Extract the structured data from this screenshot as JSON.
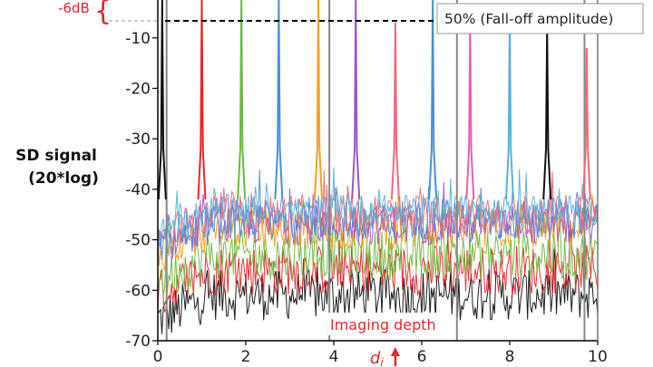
{
  "chart_data": {
    "type": "line",
    "title": "",
    "ylabel_line1": "SD signal",
    "ylabel_line2": "(20*log)",
    "xlabel": "",
    "xlim": [
      0,
      10
    ],
    "ylim": [
      -70,
      0
    ],
    "x_ticks": [
      0,
      2,
      4,
      6,
      8,
      10
    ],
    "y_ticks": [
      -10,
      -20,
      -30,
      -40,
      -50,
      -60,
      -70
    ],
    "grid": false,
    "reference_line": {
      "y": -6,
      "style": "dashed",
      "color": "#000000"
    },
    "annotations": {
      "falloff_label": "50% (Fall-off amplitude)",
      "db_label": "-6dB",
      "imaging_depth_label": "Imaging depth",
      "depth_marker_label": "d",
      "depth_marker_subscript": "i",
      "depth_marker_x": 5.4
    },
    "vertical_lines": [
      0.2,
      3.9,
      6.8,
      9.7
    ],
    "peaks": [
      {
        "x": 0.1,
        "y": 0,
        "color": "#111111"
      },
      {
        "x": 1.0,
        "y": -2,
        "color": "#e8262b"
      },
      {
        "x": 1.9,
        "y": 0,
        "color": "#6fb83f"
      },
      {
        "x": 2.75,
        "y": 0,
        "color": "#4a8fd6"
      },
      {
        "x": 3.65,
        "y": -1,
        "color": "#f4a020"
      },
      {
        "x": 4.5,
        "y": -1,
        "color": "#9b59c0"
      },
      {
        "x": 5.4,
        "y": -7,
        "color": "#f06a7a"
      },
      {
        "x": 6.25,
        "y": -2,
        "color": "#4a8fd6"
      },
      {
        "x": 7.1,
        "y": -7,
        "color": "#e860b0"
      },
      {
        "x": 8.0,
        "y": -6,
        "color": "#5ab0d8"
      },
      {
        "x": 8.85,
        "y": -8,
        "color": "#111111"
      },
      {
        "x": 9.75,
        "y": -12,
        "color": "#f06a7a"
      }
    ],
    "noise_series": [
      {
        "color": "#111111",
        "mean": -61,
        "spread": 5
      },
      {
        "color": "#e8262b",
        "mean": -56,
        "spread": 5
      },
      {
        "color": "#6fb83f",
        "mean": -53,
        "spread": 5
      },
      {
        "color": "#f4a020",
        "mean": -48,
        "spread": 4
      },
      {
        "color": "#9b59c0",
        "mean": -47,
        "spread": 4
      },
      {
        "color": "#4a8fd6",
        "mean": -46,
        "spread": 4
      },
      {
        "color": "#f06a7a",
        "mean": -45,
        "spread": 4
      },
      {
        "color": "#5ab0d8",
        "mean": -44,
        "spread": 3
      }
    ]
  }
}
